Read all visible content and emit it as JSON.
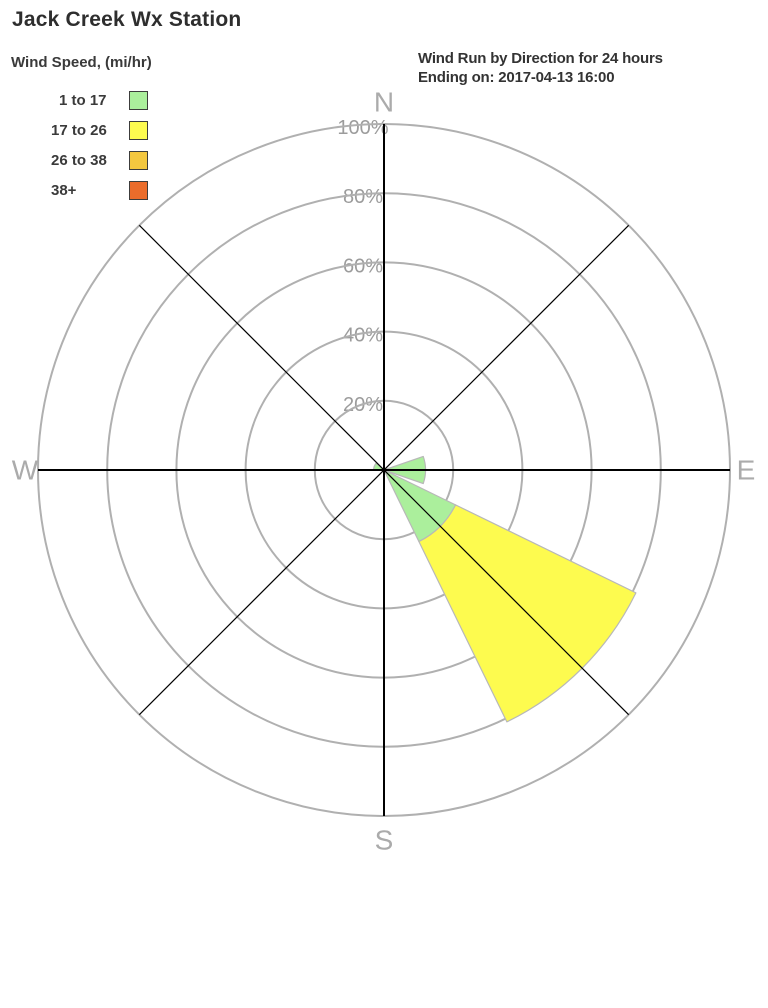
{
  "page_title": "Jack Creek Wx Station",
  "chart_header": {
    "line1": "Wind Run by Direction for 24 hours",
    "line2": "Ending on: 2017-04-13 16:00"
  },
  "legend": {
    "title": "Wind Speed, (mi/hr)"
  },
  "colors": {
    "ring": "#b0b0b0",
    "axis": "#000000",
    "wedge_border": "#b8b8b8",
    "ring_label": "#9c9c9c",
    "compass_label": "#ababab",
    "heading_text": "#2e2e2e",
    "label_text": "#3a3a3a"
  },
  "chart_data": {
    "type": "windrose",
    "station": "Jack Creek Wx Station",
    "title": "Wind Run by Direction for 24 hours",
    "subtitle": "Ending on: 2017-04-13 16:00",
    "legend_title": "Wind Speed, (mi/hr)",
    "units": "percent of 24-hour wind run",
    "speed_bins_mi_hr": [
      {
        "label": "1 to 17",
        "color": "#abef9c"
      },
      {
        "label": "17 to 26",
        "color": "#fdfb4f"
      },
      {
        "label": "26 to 38",
        "color": "#f3c73f"
      },
      {
        "label": "38+",
        "color": "#eb6c2b"
      }
    ],
    "axis": {
      "grid": "polar",
      "ring_ticks_pct": [
        20,
        40,
        60,
        80,
        100
      ],
      "ring_tick_label_suffix": "%",
      "compass_labels": [
        "N",
        "E",
        "S",
        "W"
      ],
      "rmax_pct": 100
    },
    "sector_width_deg": 38,
    "sectors": [
      {
        "direction": "E",
        "center_deg": 90,
        "segments": [
          {
            "bin": "1 to 17",
            "from_pct": 0,
            "to_pct": 12
          }
        ]
      },
      {
        "direction": "SE",
        "center_deg": 135,
        "segments": [
          {
            "bin": "1 to 17",
            "from_pct": 0,
            "to_pct": 23
          },
          {
            "bin": "17 to 26",
            "from_pct": 23,
            "to_pct": 81
          }
        ]
      },
      {
        "direction": "WNW",
        "center_deg": 292,
        "segments": [
          {
            "bin": "1 to 17",
            "from_pct": 0,
            "to_pct": 3
          }
        ]
      }
    ]
  }
}
